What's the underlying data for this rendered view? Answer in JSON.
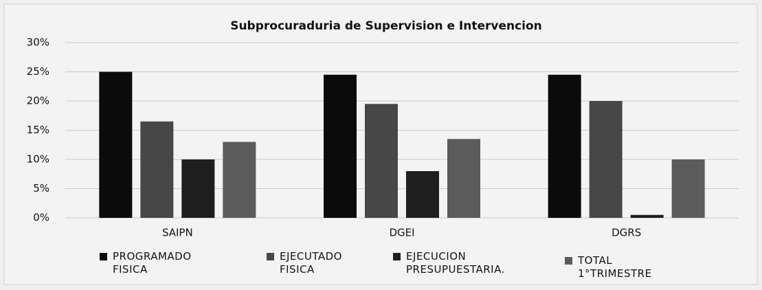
{
  "chart_data": {
    "type": "bar",
    "title": "Subprocuraduria de Supervision e Intervencion",
    "categories": [
      "SAIPN",
      "DGEI",
      "DGRS"
    ],
    "series": [
      {
        "name": "PROGRAMADO FISICA",
        "color": "#0b0b0b",
        "values": [
          25,
          24.5,
          24.5
        ]
      },
      {
        "name": "EJECUTADO FISICA",
        "color": "#474747",
        "values": [
          16.5,
          19.5,
          20
        ]
      },
      {
        "name": "EJECUCION PRESUPUESTARIA.",
        "color": "#1e1e1e",
        "values": [
          10,
          8,
          0.5
        ]
      },
      {
        "name": "TOTAL 1°TRIMESTRE",
        "color": "#5c5c5c",
        "values": [
          13,
          13.5,
          10
        ]
      }
    ],
    "ylim": [
      0,
      30
    ],
    "yticks": [
      {
        "value": 0,
        "label": "0%"
      },
      {
        "value": 5,
        "label": "5%"
      },
      {
        "value": 10,
        "label": "10%"
      },
      {
        "value": 15,
        "label": "15%"
      },
      {
        "value": 20,
        "label": "20%"
      },
      {
        "value": 25,
        "label": "25%"
      },
      {
        "value": 30,
        "label": "30%"
      }
    ],
    "grid": true,
    "legend": "bottom"
  }
}
